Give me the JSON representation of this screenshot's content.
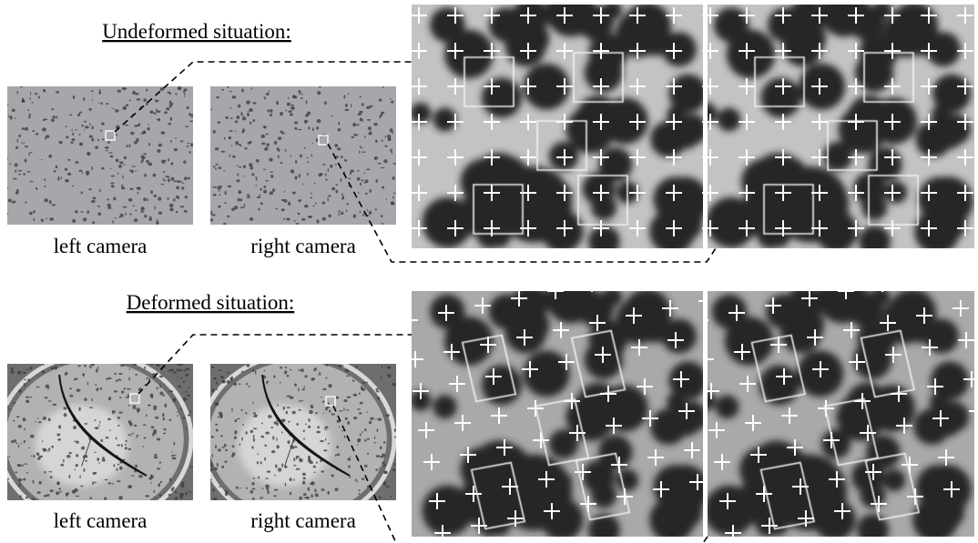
{
  "sections": [
    {
      "title": "Undeformed situation:",
      "cameras": [
        {
          "label": "left camera"
        },
        {
          "label": "right camera"
        }
      ]
    },
    {
      "title": "Deformed situation:",
      "cameras": [
        {
          "label": "left camera"
        },
        {
          "label": "right camera"
        }
      ]
    }
  ]
}
